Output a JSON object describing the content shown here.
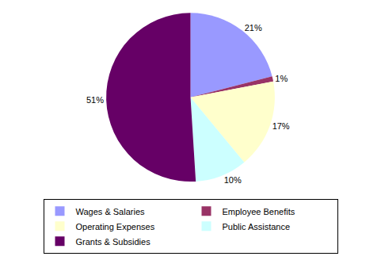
{
  "chart_data": {
    "type": "pie",
    "categories": [
      "Wages & Salaries",
      "Employee Benefits",
      "Operating Expenses",
      "Public Assistance",
      "Grants & Subsidies"
    ],
    "values": [
      21,
      1,
      17,
      10,
      51
    ],
    "value_labels": [
      "21%",
      "1%",
      "17%",
      "10%",
      "51%"
    ],
    "colors": [
      "#9999ff",
      "#993366",
      "#ffffcc",
      "#ccffff",
      "#660066"
    ],
    "data_labels": true,
    "legend": "bottom"
  }
}
